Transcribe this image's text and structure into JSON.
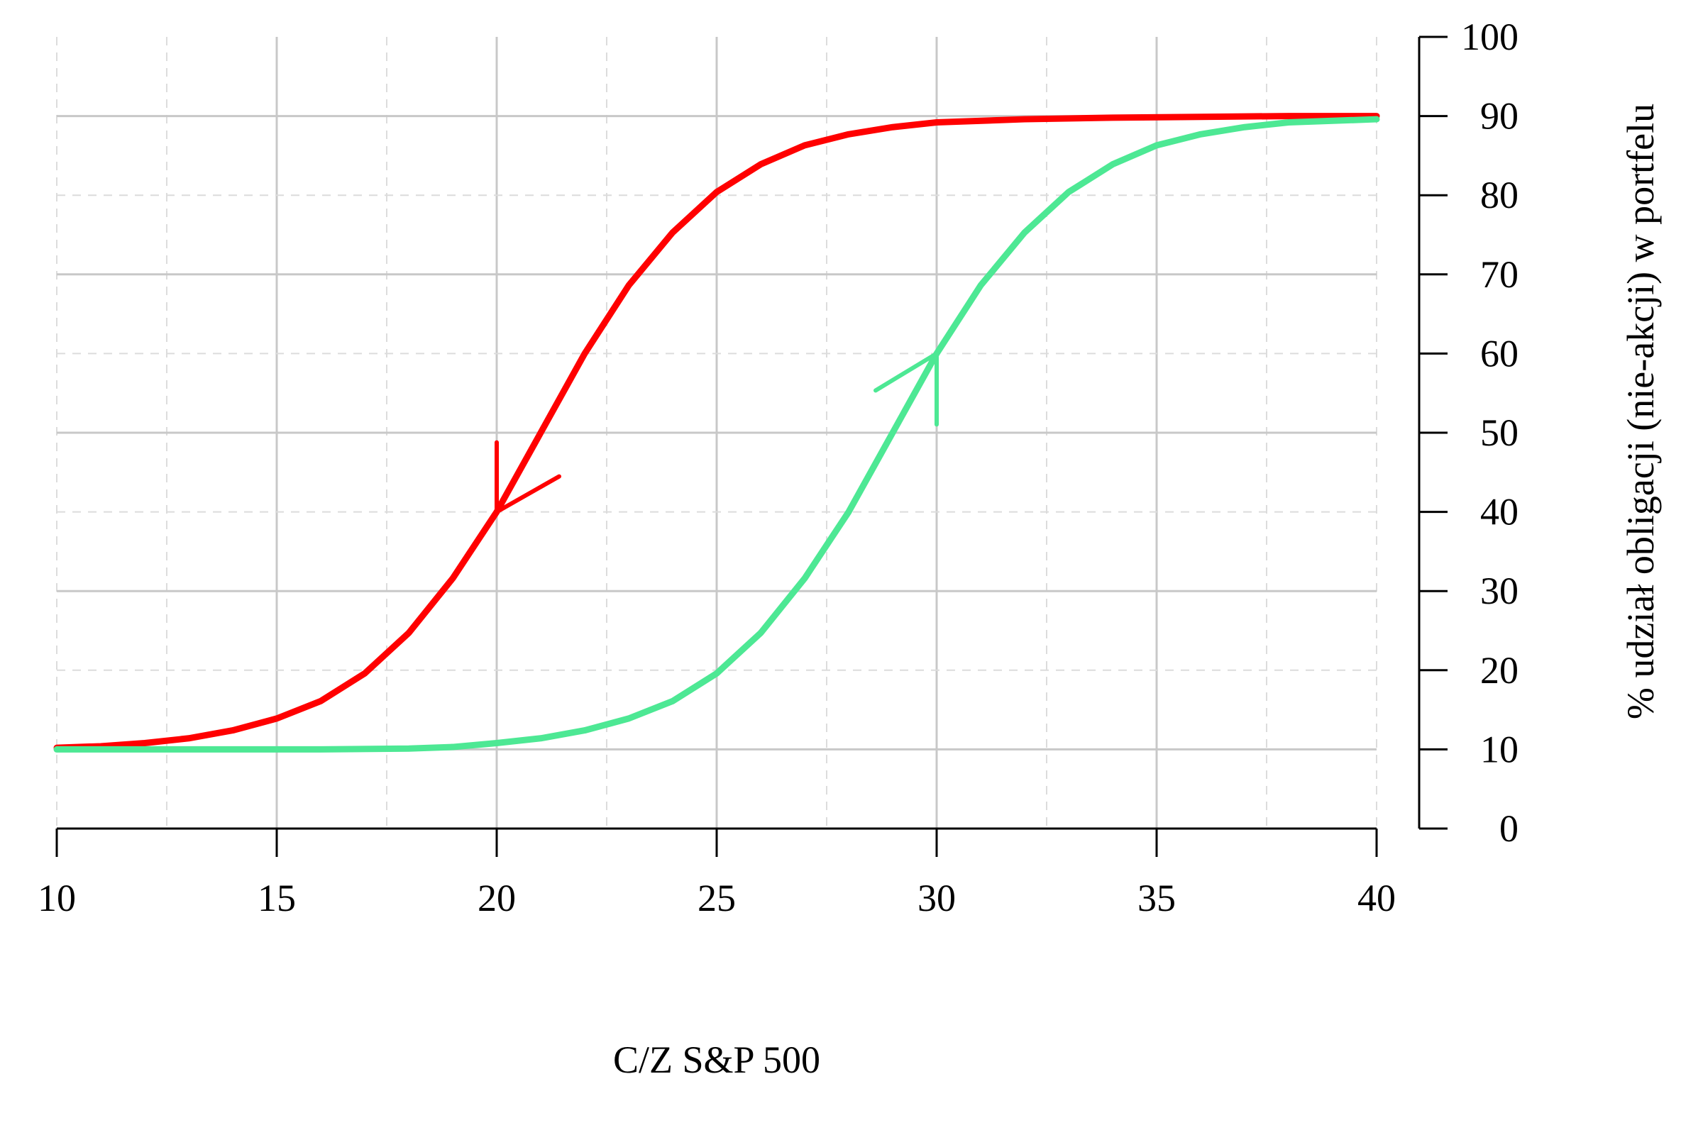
{
  "chart_data": {
    "type": "line",
    "title": "",
    "xlabel": "C/Z S&P 500",
    "ylabel": "% udział obligacji (nie-akcji) w portfelu",
    "xlim": [
      10,
      40
    ],
    "ylim": [
      0,
      100
    ],
    "x_ticks": [
      10,
      15,
      20,
      25,
      30,
      35,
      40
    ],
    "y_ticks": [
      0,
      10,
      20,
      30,
      40,
      50,
      60,
      70,
      80,
      90,
      100
    ],
    "y_axis_side": "right",
    "grid": {
      "major": true,
      "minor_dashed": true
    },
    "series": [
      {
        "color": "#ff0000",
        "direction": "down",
        "arrow_at": [
          20,
          40
        ],
        "x": [
          10,
          11,
          12,
          13,
          14,
          15,
          16,
          17,
          18,
          19,
          20,
          21,
          22,
          23,
          24,
          25,
          26,
          27,
          28,
          29,
          30,
          32,
          34,
          36,
          38,
          40
        ],
        "y": [
          10.2,
          10.4,
          10.8,
          11.4,
          12.4,
          13.9,
          16.1,
          19.6,
          24.7,
          31.6,
          40.0,
          50.0,
          60.0,
          68.6,
          75.3,
          80.4,
          83.9,
          86.3,
          87.7,
          88.6,
          89.2,
          89.6,
          89.8,
          89.9,
          90.0,
          90.0
        ]
      },
      {
        "color": "#4de894",
        "direction": "up",
        "arrow_at": [
          30,
          60
        ],
        "x": [
          10,
          12,
          14,
          16,
          18,
          19,
          20,
          21,
          22,
          23,
          24,
          25,
          26,
          27,
          28,
          29,
          30,
          31,
          32,
          33,
          34,
          35,
          36,
          37,
          38,
          40
        ],
        "y": [
          10.0,
          10.0,
          10.0,
          10.0,
          10.1,
          10.3,
          10.8,
          11.4,
          12.4,
          13.9,
          16.1,
          19.6,
          24.7,
          31.6,
          40.0,
          50.0,
          60.0,
          68.6,
          75.3,
          80.4,
          83.9,
          86.3,
          87.7,
          88.6,
          89.2,
          89.6
        ]
      }
    ]
  }
}
